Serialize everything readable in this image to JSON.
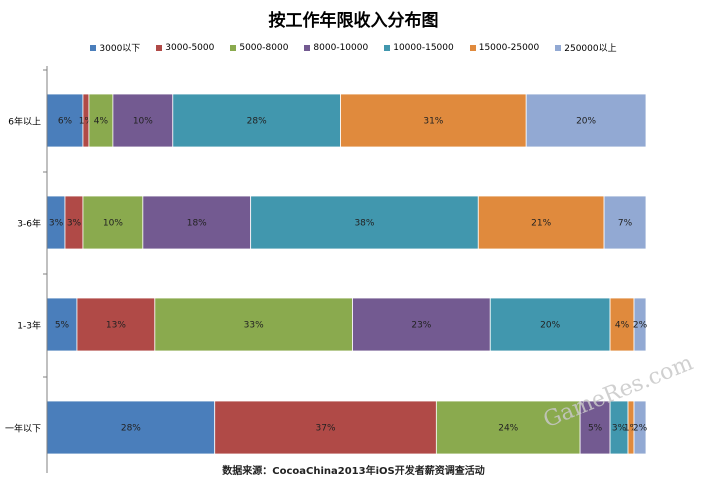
{
  "chart_data": {
    "type": "bar",
    "orientation": "horizontal",
    "stacked": "percent",
    "title": "按工作年限收入分布图",
    "categories": [
      "6年以上",
      "3-6年",
      "1-3年",
      "一年以下"
    ],
    "series": [
      {
        "name": "3000以下",
        "color": "#4A7EBB",
        "values": [
          6,
          3,
          5,
          28
        ],
        "labels": [
          "6%",
          "3%",
          "5%",
          "28%"
        ]
      },
      {
        "name": "3000-5000",
        "color": "#B04A47",
        "values": [
          1,
          3,
          13,
          37
        ],
        "labels": [
          "1%",
          "3%",
          "13%",
          "37%"
        ]
      },
      {
        "name": "5000-8000",
        "color": "#8AAA4E",
        "values": [
          4,
          10,
          33,
          24
        ],
        "labels": [
          "4%",
          "10%",
          "33%",
          "24%"
        ]
      },
      {
        "name": "8000-10000",
        "color": "#735A91",
        "values": [
          10,
          18,
          23,
          5
        ],
        "labels": [
          "10%",
          "18%",
          "23%",
          "5%"
        ]
      },
      {
        "name": "10000-15000",
        "color": "#4197AE",
        "values": [
          28,
          38,
          20,
          3
        ],
        "labels": [
          "28%",
          "38%",
          "20%",
          "3%"
        ]
      },
      {
        "name": "15000-25000",
        "color": "#E08A3D",
        "values": [
          31,
          21,
          4,
          1
        ],
        "labels": [
          "31%",
          "21%",
          "4%",
          "1%"
        ]
      },
      {
        "name": "250000以上",
        "color": "#92A9D3",
        "values": [
          20,
          7,
          2,
          2
        ],
        "labels": [
          "20%",
          "7%",
          "2%",
          "2%"
        ]
      }
    ],
    "legend_position": "top",
    "grid": false
  },
  "source_note": "数据来源：CocoaChina2013年iOS开发者薪资调查活动",
  "watermark": "GameRes.com"
}
